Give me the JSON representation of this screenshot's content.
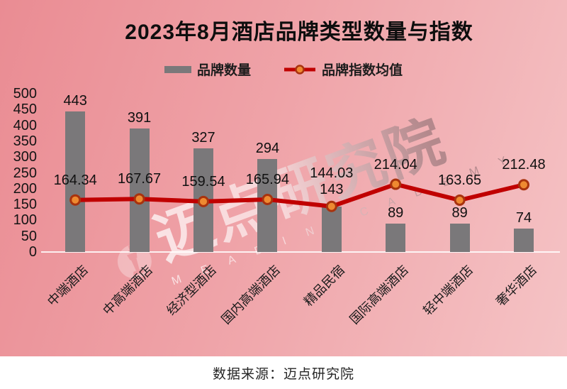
{
  "title": "2023年8月酒店品牌类型数量与指数",
  "legend": {
    "bars_label": "品牌数量",
    "line_label": "品牌指数均值"
  },
  "watermark": {
    "cn": "迈点研究院",
    "en": "M E A D I N   A C A D E M Y"
  },
  "footer": {
    "source": "数据来源：迈点研究院"
  },
  "colors": {
    "bar": "#7a787a",
    "line": "#c00000",
    "marker_fill": "#ee8a31",
    "marker_stroke": "#a8330e",
    "bg_from": "#ea8c93",
    "bg_to": "#f5c4c6",
    "label": "#111111"
  },
  "chart_data": {
    "type": "bar",
    "combo": "bar+line",
    "categories": [
      "中端酒店",
      "中高端酒店",
      "经济型酒店",
      "国内高端酒店",
      "精品民宿",
      "国际高端酒店",
      "轻中端酒店",
      "奢华酒店"
    ],
    "series": [
      {
        "name": "品牌数量",
        "type": "bar",
        "values": [
          443,
          391,
          327,
          294,
          143,
          89,
          89,
          74
        ]
      },
      {
        "name": "品牌指数均值",
        "type": "line",
        "values": [
          164.34,
          167.67,
          159.54,
          165.94,
          144.03,
          214.04,
          163.65,
          212.48
        ]
      }
    ],
    "title": "2023年8月酒店品牌类型数量与指数",
    "xlabel": "",
    "ylabel": "",
    "ylim": [
      0,
      500
    ],
    "yticks": [
      0,
      50,
      100,
      150,
      200,
      250,
      300,
      350,
      400,
      450,
      500
    ],
    "grid": false,
    "legend_position": "top"
  }
}
